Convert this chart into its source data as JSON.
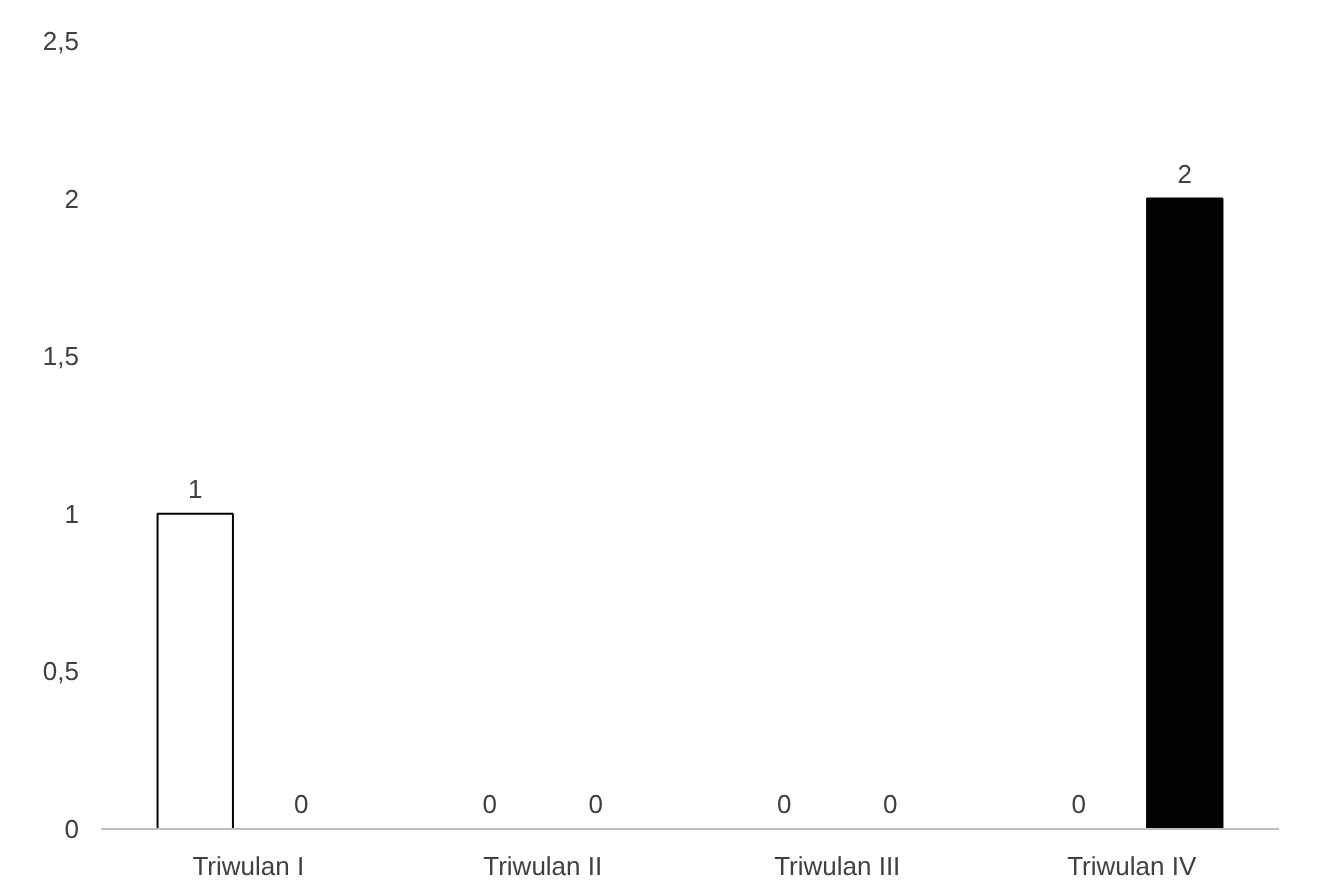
{
  "chart_data": {
    "type": "bar",
    "categories": [
      "Triwulan I",
      "Triwulan II",
      "Triwulan III",
      "Triwulan IV"
    ],
    "series": [
      {
        "color": "#ffffff",
        "values": [
          1,
          0,
          0,
          0
        ]
      },
      {
        "color": "#000000",
        "values": [
          0,
          0,
          0,
          2
        ]
      }
    ],
    "ylim": [
      0,
      2.5
    ],
    "yticks": [
      0,
      {
        "value": 0.5,
        "label": "0,5"
      },
      1,
      {
        "value": 1.5,
        "label": "1,5"
      },
      2,
      {
        "value": 2.5,
        "label": "2,5"
      }
    ],
    "data_labels": true,
    "grid": false
  }
}
